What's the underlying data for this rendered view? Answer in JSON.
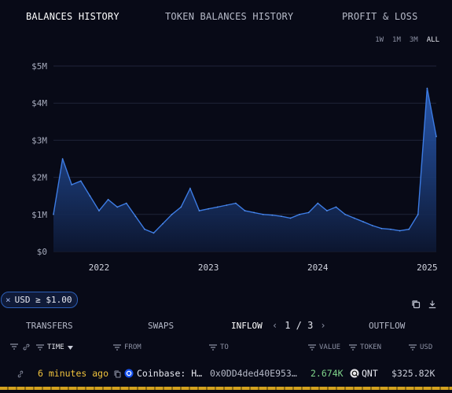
{
  "tabs": [
    "BALANCES HISTORY",
    "TOKEN BALANCES HISTORY",
    "PROFIT & LOSS"
  ],
  "ranges": [
    "1W",
    "1M",
    "3M",
    "ALL"
  ],
  "selected_range": "ALL",
  "chart_data": {
    "type": "area",
    "y_ticks": [
      "$0",
      "$1M",
      "$2M",
      "$3M",
      "$4M",
      "$5M"
    ],
    "ylim": [
      0,
      5000000
    ],
    "x_ticks": [
      "2022",
      "2023",
      "2024",
      "2025"
    ],
    "grid": true,
    "color": "#3c7be3",
    "series": [
      {
        "x": [
          "2021-08",
          "2021-09",
          "2021-10",
          "2021-11",
          "2021-12",
          "2022-01",
          "2022-02",
          "2022-03",
          "2022-04",
          "2022-05",
          "2022-06",
          "2022-07",
          "2022-08",
          "2022-09",
          "2022-10",
          "2022-11",
          "2022-12",
          "2023-01",
          "2023-02",
          "2023-03",
          "2023-04",
          "2023-05",
          "2023-06",
          "2023-07",
          "2023-08",
          "2023-09",
          "2023-10",
          "2023-11",
          "2023-12",
          "2024-01",
          "2024-02",
          "2024-03",
          "2024-04",
          "2024-05",
          "2024-06",
          "2024-07",
          "2024-08",
          "2024-09",
          "2024-10",
          "2024-11",
          "2024-12",
          "2025-01",
          "2025-02"
        ],
        "values": [
          1000000,
          2500000,
          1800000,
          1900000,
          1500000,
          1100000,
          1400000,
          1200000,
          1300000,
          950000,
          600000,
          500000,
          750000,
          1000000,
          1200000,
          1700000,
          1100000,
          1150000,
          1200000,
          1250000,
          1300000,
          1100000,
          1050000,
          1000000,
          980000,
          950000,
          900000,
          1000000,
          1050000,
          1300000,
          1100000,
          1200000,
          1000000,
          900000,
          800000,
          700000,
          620000,
          600000,
          560000,
          600000,
          1000000,
          4400000,
          3100000
        ]
      }
    ]
  },
  "filter_chip": {
    "close": "×",
    "label": "USD ≥ $1.00"
  },
  "table_tabs": {
    "transfers": "TRANSFERS",
    "swaps": "SWAPS",
    "inflow": "INFLOW",
    "outflow": "OUTFLOW"
  },
  "pager": {
    "prev": "‹",
    "text": "1 / 3",
    "next": "›"
  },
  "columns": {
    "time": "TIME",
    "from": "FROM",
    "to": "TO",
    "value": "VALUE",
    "token": "TOKEN",
    "usd": "USD"
  },
  "rows": [
    {
      "time": "6 minutes ago",
      "from": "Coinbase: H…",
      "to": "0x0DD4ded40E953…",
      "value": "2.674K",
      "token": "QNT",
      "usd": "$325.82K"
    }
  ],
  "colors": {
    "accent": "#3c7be3",
    "positive": "#7fd48b",
    "highlight": "#f0c23c"
  }
}
